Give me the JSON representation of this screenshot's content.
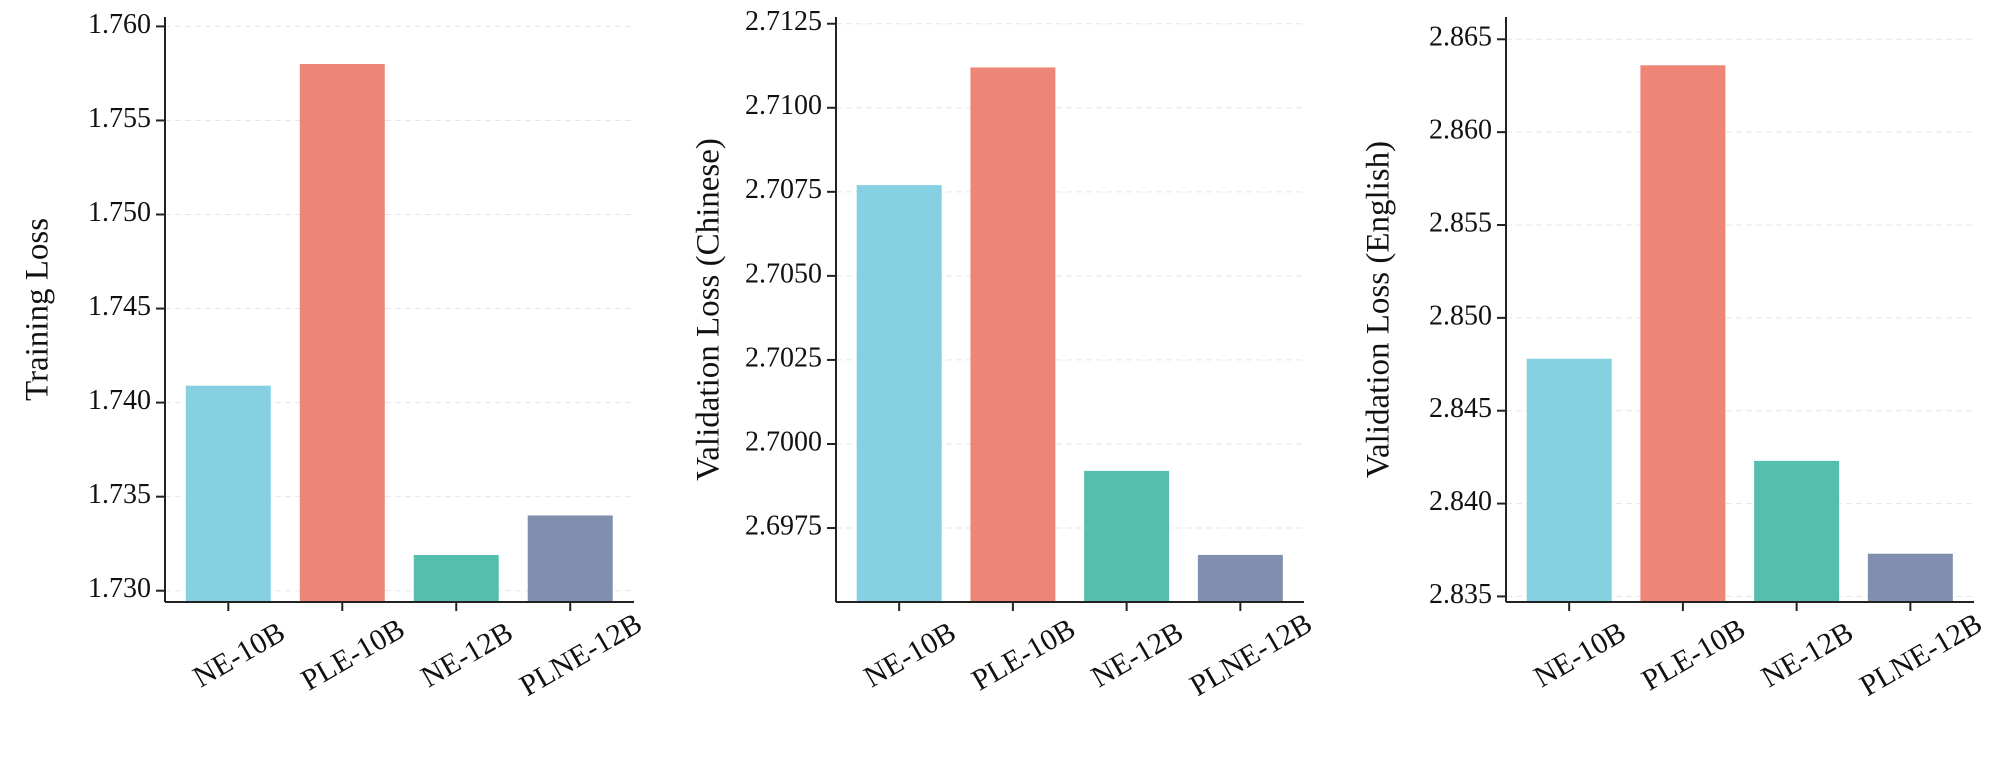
{
  "chart_data": [
    {
      "type": "bar",
      "ylabel": "Training Loss",
      "categories": [
        "NE-10B",
        "PLE-10B",
        "NE-12B",
        "PLNE-12B"
      ],
      "values": [
        1.7409,
        1.758,
        1.7319,
        1.734
      ],
      "colors": [
        "#7ecfe0",
        "#ec8070",
        "#4dbba8",
        "#7a89ab"
      ],
      "ylim": [
        1.7294,
        1.7605
      ],
      "yticks": [
        {
          "value": 1.73,
          "label": "1.730"
        },
        1.735,
        {
          "value": 1.74,
          "label": "1.740"
        },
        1.745,
        {
          "value": 1.75,
          "label": "1.750"
        },
        1.755,
        {
          "value": 1.76,
          "label": "1.760"
        }
      ],
      "grid": true
    },
    {
      "type": "bar",
      "ylabel": "Validation Loss (Chinese)",
      "categories": [
        "NE-10B",
        "PLE-10B",
        "NE-12B",
        "PLNE-12B"
      ],
      "values": [
        2.7077,
        2.7112,
        2.6992,
        2.6967
      ],
      "colors": [
        "#7ecfe0",
        "#ec8070",
        "#4dbba8",
        "#7a89ab"
      ],
      "ylim": [
        2.6953,
        2.7127
      ],
      "yticks": [
        2.6975,
        {
          "value": 2.7,
          "label": "2.7000"
        },
        2.7025,
        {
          "value": 2.705,
          "label": "2.7050"
        },
        2.7075,
        {
          "value": 2.71,
          "label": "2.7100"
        },
        2.7125
      ],
      "grid": true
    },
    {
      "type": "bar",
      "ylabel": "Validation Loss (English)",
      "categories": [
        "NE-10B",
        "PLE-10B",
        "NE-12B",
        "PLNE-12B"
      ],
      "values": [
        2.8478,
        2.8636,
        2.8423,
        2.8373
      ],
      "colors": [
        "#7ecfe0",
        "#ec8070",
        "#4dbba8",
        "#7a89ab"
      ],
      "ylim": [
        2.8347,
        2.8662
      ],
      "yticks": [
        2.835,
        {
          "value": 2.84,
          "label": "2.840"
        },
        2.845,
        {
          "value": 2.85,
          "label": "2.850"
        },
        2.855,
        {
          "value": 2.86,
          "label": "2.860"
        },
        2.865
      ],
      "grid": true
    }
  ]
}
